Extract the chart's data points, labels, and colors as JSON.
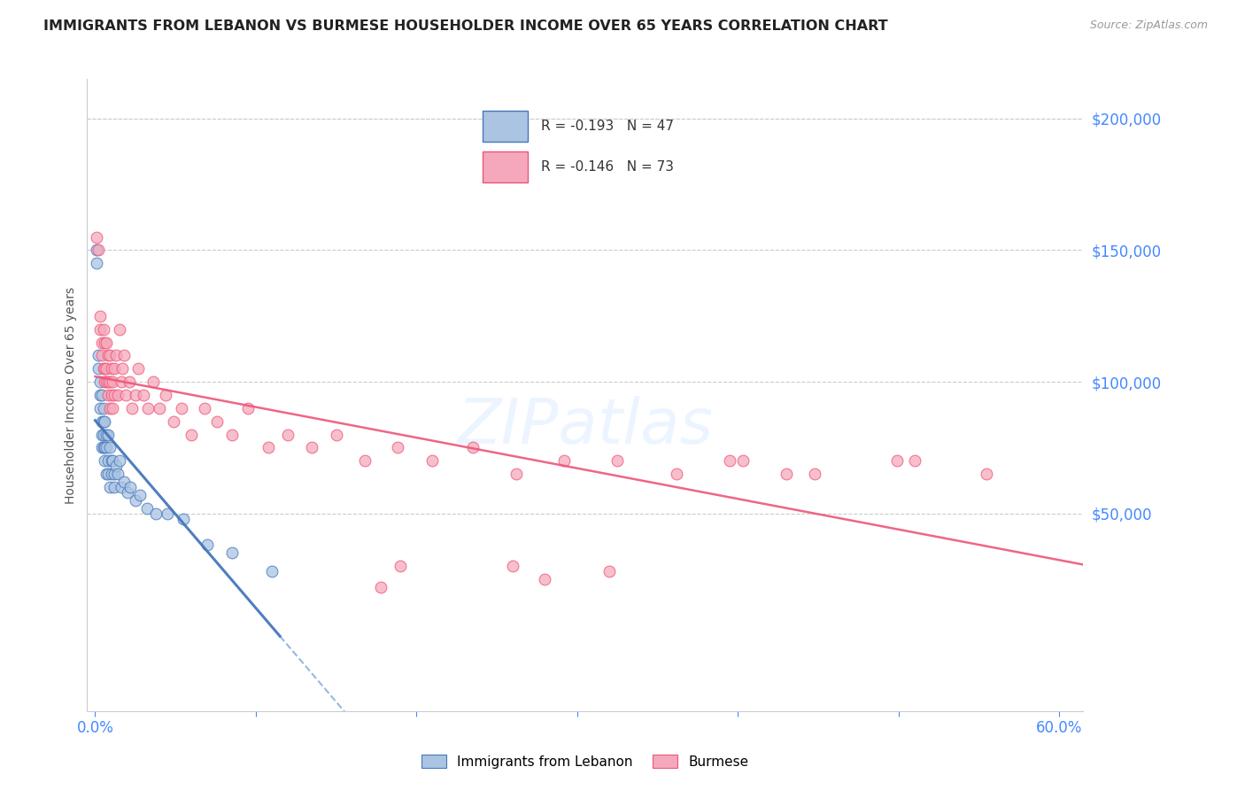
{
  "title": "IMMIGRANTS FROM LEBANON VS BURMESE HOUSEHOLDER INCOME OVER 65 YEARS CORRELATION CHART",
  "source": "Source: ZipAtlas.com",
  "ylabel": "Householder Income Over 65 years",
  "legend_label1": "R = -0.193   N = 47",
  "legend_label2": "R = -0.146   N = 73",
  "legend_series1": "Immigrants from Lebanon",
  "legend_series2": "Burmese",
  "color_lebanon": "#aac4e2",
  "color_burmese": "#f5a8bc",
  "color_lebanon_line": "#4477bb",
  "color_burmese_line": "#ee5577",
  "color_dashed": "#88aadd",
  "right_axis_color": "#4488ff",
  "ytick_labels": [
    "$200,000",
    "$150,000",
    "$100,000",
    "$50,000"
  ],
  "ytick_values": [
    200000,
    150000,
    100000,
    50000
  ],
  "ymax": 215000,
  "ymin": -25000,
  "xmax": 0.615,
  "xmin": -0.005,
  "lebanon_x": [
    0.001,
    0.001,
    0.002,
    0.002,
    0.003,
    0.003,
    0.003,
    0.004,
    0.004,
    0.004,
    0.004,
    0.005,
    0.005,
    0.005,
    0.005,
    0.006,
    0.006,
    0.006,
    0.007,
    0.007,
    0.007,
    0.008,
    0.008,
    0.008,
    0.009,
    0.009,
    0.01,
    0.01,
    0.011,
    0.012,
    0.012,
    0.013,
    0.014,
    0.015,
    0.016,
    0.018,
    0.02,
    0.022,
    0.025,
    0.028,
    0.032,
    0.038,
    0.045,
    0.055,
    0.07,
    0.085,
    0.11
  ],
  "lebanon_y": [
    150000,
    145000,
    110000,
    105000,
    100000,
    95000,
    90000,
    95000,
    85000,
    80000,
    75000,
    90000,
    85000,
    80000,
    75000,
    85000,
    75000,
    70000,
    80000,
    75000,
    65000,
    80000,
    70000,
    65000,
    75000,
    60000,
    70000,
    65000,
    70000,
    65000,
    60000,
    68000,
    65000,
    70000,
    60000,
    62000,
    58000,
    60000,
    55000,
    57000,
    52000,
    50000,
    50000,
    48000,
    38000,
    35000,
    28000
  ],
  "burmese_x": [
    0.001,
    0.002,
    0.003,
    0.003,
    0.004,
    0.004,
    0.005,
    0.005,
    0.006,
    0.006,
    0.006,
    0.007,
    0.007,
    0.007,
    0.008,
    0.008,
    0.008,
    0.009,
    0.009,
    0.009,
    0.01,
    0.01,
    0.011,
    0.011,
    0.012,
    0.012,
    0.013,
    0.014,
    0.015,
    0.016,
    0.017,
    0.018,
    0.019,
    0.021,
    0.023,
    0.025,
    0.027,
    0.03,
    0.033,
    0.036,
    0.04,
    0.044,
    0.049,
    0.054,
    0.06,
    0.068,
    0.076,
    0.085,
    0.095,
    0.108,
    0.12,
    0.135,
    0.15,
    0.168,
    0.188,
    0.21,
    0.235,
    0.262,
    0.292,
    0.325,
    0.362,
    0.403,
    0.448,
    0.499,
    0.555,
    0.395,
    0.28,
    0.19,
    0.32,
    0.43,
    0.51,
    0.178,
    0.26
  ],
  "burmese_y": [
    155000,
    150000,
    125000,
    120000,
    115000,
    110000,
    120000,
    105000,
    115000,
    105000,
    100000,
    115000,
    105000,
    100000,
    110000,
    100000,
    95000,
    110000,
    100000,
    90000,
    105000,
    95000,
    100000,
    90000,
    105000,
    95000,
    110000,
    95000,
    120000,
    100000,
    105000,
    110000,
    95000,
    100000,
    90000,
    95000,
    105000,
    95000,
    90000,
    100000,
    90000,
    95000,
    85000,
    90000,
    80000,
    90000,
    85000,
    80000,
    90000,
    75000,
    80000,
    75000,
    80000,
    70000,
    75000,
    70000,
    75000,
    65000,
    70000,
    70000,
    65000,
    70000,
    65000,
    70000,
    65000,
    70000,
    25000,
    30000,
    28000,
    65000,
    70000,
    22000,
    30000
  ]
}
